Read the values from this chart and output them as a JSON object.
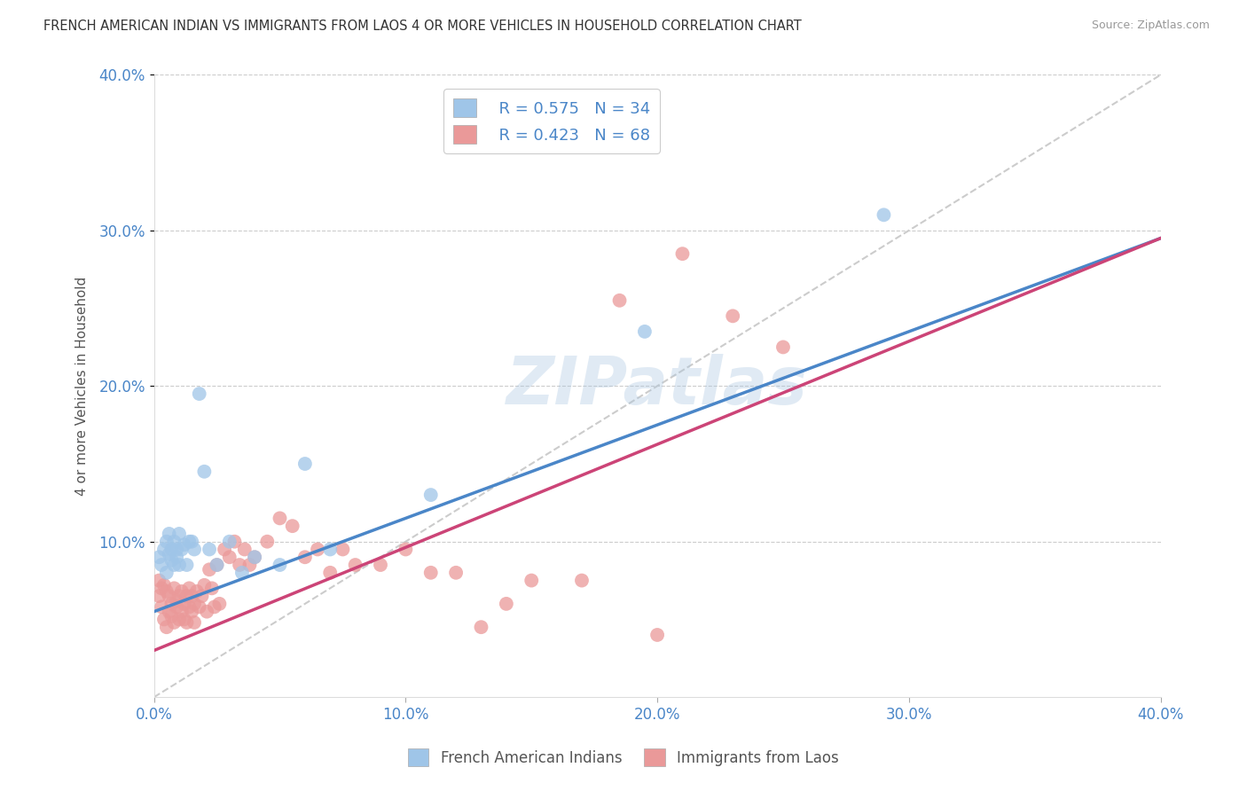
{
  "title": "FRENCH AMERICAN INDIAN VS IMMIGRANTS FROM LAOS 4 OR MORE VEHICLES IN HOUSEHOLD CORRELATION CHART",
  "source": "Source: ZipAtlas.com",
  "ylabel": "4 or more Vehicles in Household",
  "xlim": [
    0.0,
    0.4
  ],
  "ylim": [
    0.0,
    0.4
  ],
  "xticks": [
    0.0,
    0.1,
    0.2,
    0.3,
    0.4
  ],
  "yticks": [
    0.1,
    0.2,
    0.3,
    0.4
  ],
  "xticklabels": [
    "0.0%",
    "10.0%",
    "20.0%",
    "30.0%",
    "40.0%"
  ],
  "yticklabels": [
    "10.0%",
    "20.0%",
    "30.0%",
    "40.0%"
  ],
  "blue_color": "#9fc5e8",
  "pink_color": "#ea9999",
  "blue_line_color": "#4a86c8",
  "pink_line_color": "#cc4477",
  "diagonal_color": "#cccccc",
  "legend_R_blue": "R = 0.575",
  "legend_N_blue": "N = 34",
  "legend_R_pink": "R = 0.423",
  "legend_N_pink": "N = 68",
  "label_blue": "French American Indians",
  "label_pink": "Immigrants from Laos",
  "watermark": "ZIPatlas",
  "blue_line_x0": 0.0,
  "blue_line_y0": 0.055,
  "blue_line_x1": 0.4,
  "blue_line_y1": 0.295,
  "pink_line_x0": 0.0,
  "pink_line_y0": 0.03,
  "pink_line_x1": 0.4,
  "pink_line_y1": 0.295,
  "blue_scatter_x": [
    0.002,
    0.003,
    0.004,
    0.005,
    0.005,
    0.006,
    0.006,
    0.007,
    0.007,
    0.008,
    0.008,
    0.009,
    0.009,
    0.01,
    0.01,
    0.011,
    0.012,
    0.013,
    0.014,
    0.015,
    0.016,
    0.018,
    0.02,
    0.022,
    0.025,
    0.03,
    0.035,
    0.04,
    0.05,
    0.06,
    0.07,
    0.11,
    0.195,
    0.29
  ],
  "blue_scatter_y": [
    0.09,
    0.085,
    0.095,
    0.1,
    0.08,
    0.092,
    0.105,
    0.088,
    0.095,
    0.085,
    0.1,
    0.09,
    0.095,
    0.085,
    0.105,
    0.095,
    0.098,
    0.085,
    0.1,
    0.1,
    0.095,
    0.195,
    0.145,
    0.095,
    0.085,
    0.1,
    0.08,
    0.09,
    0.085,
    0.15,
    0.095,
    0.13,
    0.235,
    0.31
  ],
  "pink_scatter_x": [
    0.002,
    0.002,
    0.003,
    0.003,
    0.004,
    0.004,
    0.005,
    0.005,
    0.006,
    0.006,
    0.007,
    0.007,
    0.008,
    0.008,
    0.009,
    0.009,
    0.01,
    0.01,
    0.011,
    0.011,
    0.012,
    0.012,
    0.013,
    0.013,
    0.014,
    0.014,
    0.015,
    0.015,
    0.016,
    0.016,
    0.017,
    0.018,
    0.019,
    0.02,
    0.021,
    0.022,
    0.023,
    0.024,
    0.025,
    0.026,
    0.028,
    0.03,
    0.032,
    0.034,
    0.036,
    0.038,
    0.04,
    0.045,
    0.05,
    0.055,
    0.06,
    0.065,
    0.07,
    0.075,
    0.08,
    0.09,
    0.1,
    0.11,
    0.12,
    0.13,
    0.14,
    0.15,
    0.17,
    0.185,
    0.2,
    0.21,
    0.23,
    0.25
  ],
  "pink_scatter_y": [
    0.075,
    0.065,
    0.07,
    0.058,
    0.072,
    0.05,
    0.068,
    0.045,
    0.065,
    0.055,
    0.06,
    0.052,
    0.07,
    0.048,
    0.058,
    0.062,
    0.065,
    0.05,
    0.068,
    0.055,
    0.06,
    0.05,
    0.065,
    0.048,
    0.07,
    0.058,
    0.055,
    0.065,
    0.06,
    0.048,
    0.068,
    0.058,
    0.065,
    0.072,
    0.055,
    0.082,
    0.07,
    0.058,
    0.085,
    0.06,
    0.095,
    0.09,
    0.1,
    0.085,
    0.095,
    0.085,
    0.09,
    0.1,
    0.115,
    0.11,
    0.09,
    0.095,
    0.08,
    0.095,
    0.085,
    0.085,
    0.095,
    0.08,
    0.08,
    0.045,
    0.06,
    0.075,
    0.075,
    0.255,
    0.04,
    0.285,
    0.245,
    0.225
  ]
}
